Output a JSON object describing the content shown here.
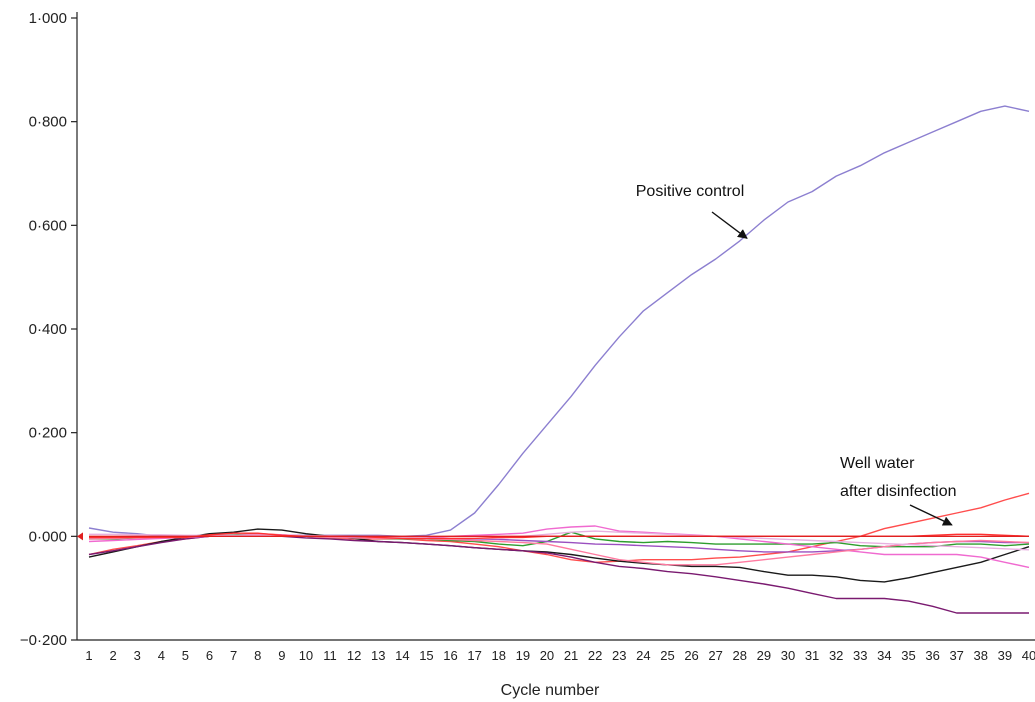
{
  "chart_data": {
    "type": "line",
    "title": "",
    "xlabel": "Cycle number",
    "ylabel": "",
    "xlim": [
      1,
      40
    ],
    "ylim": [
      -0.2,
      1.0
    ],
    "yticks": [
      -0.2,
      0.0,
      0.2,
      0.4,
      0.6,
      0.8,
      1.0
    ],
    "ytick_labels": [
      "−0·200",
      "0·000",
      "0·200",
      "0·400",
      "0·600",
      "0·800",
      "1·000"
    ],
    "x": [
      1,
      2,
      3,
      4,
      5,
      6,
      7,
      8,
      9,
      10,
      11,
      12,
      13,
      14,
      15,
      16,
      17,
      18,
      19,
      20,
      21,
      22,
      23,
      24,
      25,
      26,
      27,
      28,
      29,
      30,
      31,
      32,
      33,
      34,
      35,
      36,
      37,
      38,
      39,
      40
    ],
    "series": [
      {
        "color": "#8c7fd0",
        "values": [
          0.016,
          0.008,
          0.005,
          0.0,
          -0.002,
          0.0,
          0.002,
          0.002,
          0.002,
          0.002,
          0.002,
          0.002,
          0.002,
          0.0,
          0.002,
          0.012,
          0.045,
          0.1,
          0.16,
          0.215,
          0.27,
          0.33,
          0.385,
          0.435,
          0.47,
          0.505,
          0.535,
          0.57,
          0.61,
          0.645,
          0.665,
          0.695,
          0.715,
          0.74,
          0.76,
          0.78,
          0.8,
          0.82,
          0.83,
          0.82
        ]
      },
      {
        "color": "#ff4d4d",
        "values": [
          -0.035,
          -0.025,
          -0.018,
          -0.01,
          -0.005,
          0.0,
          0.002,
          0.005,
          0.003,
          0.0,
          -0.003,
          -0.005,
          -0.005,
          -0.005,
          -0.008,
          -0.01,
          -0.015,
          -0.02,
          -0.028,
          -0.035,
          -0.045,
          -0.05,
          -0.048,
          -0.045,
          -0.045,
          -0.045,
          -0.042,
          -0.04,
          -0.035,
          -0.03,
          -0.02,
          -0.01,
          0.0,
          0.015,
          0.025,
          0.035,
          0.045,
          0.055,
          0.07,
          0.083
        ]
      },
      {
        "color": "#1a1a1a",
        "values": [
          -0.04,
          -0.03,
          -0.02,
          -0.01,
          -0.002,
          0.005,
          0.008,
          0.014,
          0.012,
          0.005,
          0.0,
          -0.004,
          -0.01,
          -0.012,
          -0.015,
          -0.018,
          -0.022,
          -0.025,
          -0.028,
          -0.03,
          -0.035,
          -0.042,
          -0.048,
          -0.052,
          -0.055,
          -0.058,
          -0.058,
          -0.06,
          -0.068,
          -0.075,
          -0.075,
          -0.078,
          -0.085,
          -0.088,
          -0.08,
          -0.07,
          -0.06,
          -0.05,
          -0.035,
          -0.02
        ]
      },
      {
        "color": "#7a1a70",
        "values": [
          -0.035,
          -0.028,
          -0.02,
          -0.012,
          -0.005,
          0.0,
          0.002,
          0.003,
          0.0,
          -0.003,
          -0.005,
          -0.008,
          -0.01,
          -0.012,
          -0.015,
          -0.018,
          -0.022,
          -0.025,
          -0.028,
          -0.032,
          -0.04,
          -0.05,
          -0.058,
          -0.062,
          -0.068,
          -0.072,
          -0.078,
          -0.085,
          -0.092,
          -0.1,
          -0.11,
          -0.12,
          -0.12,
          -0.12,
          -0.125,
          -0.135,
          -0.148,
          -0.148,
          -0.148,
          -0.148
        ]
      },
      {
        "color": "#2e9e2e",
        "values": [
          -0.005,
          -0.005,
          -0.003,
          -0.002,
          0.0,
          0.002,
          0.003,
          0.004,
          0.002,
          0.0,
          -0.002,
          -0.003,
          -0.004,
          -0.005,
          -0.005,
          -0.008,
          -0.01,
          -0.015,
          -0.018,
          -0.01,
          0.008,
          -0.005,
          -0.01,
          -0.012,
          -0.01,
          -0.012,
          -0.015,
          -0.015,
          -0.015,
          -0.015,
          -0.015,
          -0.012,
          -0.018,
          -0.02,
          -0.02,
          -0.02,
          -0.015,
          -0.015,
          -0.018,
          -0.015
        ]
      },
      {
        "color": "#f06ad0",
        "values": [
          -0.01,
          -0.008,
          -0.006,
          -0.004,
          -0.002,
          0.0,
          0.002,
          0.004,
          0.003,
          0.001,
          0.0,
          -0.002,
          -0.003,
          -0.003,
          -0.003,
          0.0,
          0.002,
          0.004,
          0.006,
          0.014,
          0.018,
          0.02,
          0.01,
          0.008,
          0.005,
          0.003,
          0.0,
          -0.005,
          -0.01,
          -0.015,
          -0.02,
          -0.025,
          -0.03,
          -0.035,
          -0.035,
          -0.035,
          -0.035,
          -0.04,
          -0.05,
          -0.06
        ]
      },
      {
        "color": "#9a4fc0",
        "values": [
          -0.002,
          -0.002,
          -0.001,
          0.0,
          0.0,
          0.001,
          0.002,
          0.002,
          0.001,
          0.0,
          -0.001,
          -0.002,
          -0.002,
          -0.003,
          -0.004,
          -0.005,
          -0.005,
          -0.006,
          -0.008,
          -0.01,
          -0.012,
          -0.015,
          -0.016,
          -0.018,
          -0.02,
          -0.022,
          -0.025,
          -0.028,
          -0.03,
          -0.03,
          -0.03,
          -0.028,
          -0.025,
          -0.02,
          -0.015,
          -0.012,
          -0.01,
          -0.01,
          -0.012,
          -0.012
        ]
      },
      {
        "color": "#ff7aa0",
        "values": [
          -0.005,
          -0.004,
          -0.003,
          -0.002,
          -0.001,
          0.001,
          0.002,
          0.003,
          0.002,
          0.0,
          -0.002,
          -0.003,
          -0.004,
          -0.004,
          -0.005,
          -0.006,
          -0.008,
          -0.01,
          -0.012,
          -0.015,
          -0.025,
          -0.035,
          -0.045,
          -0.05,
          -0.055,
          -0.055,
          -0.055,
          -0.05,
          -0.045,
          -0.04,
          -0.035,
          -0.03,
          -0.025,
          -0.02,
          -0.015,
          -0.012,
          -0.01,
          -0.008,
          -0.01,
          -0.012
        ]
      },
      {
        "color": "#e8b0e0",
        "values": [
          0.004,
          0.004,
          0.003,
          0.003,
          0.002,
          0.002,
          0.002,
          0.002,
          0.002,
          0.001,
          0.001,
          0.0,
          0.0,
          -0.002,
          -0.004,
          -0.004,
          -0.004,
          -0.004,
          0.0,
          0.004,
          0.008,
          0.01,
          0.008,
          0.006,
          0.004,
          0.002,
          0.0,
          -0.002,
          -0.004,
          -0.006,
          -0.008,
          -0.01,
          -0.012,
          -0.014,
          -0.016,
          -0.018,
          -0.02,
          -0.022,
          -0.024,
          -0.026
        ]
      },
      {
        "color": "#ff3030",
        "values": [
          -0.002,
          -0.002,
          -0.002,
          -0.002,
          -0.002,
          0.003,
          0.006,
          0.006,
          0.002,
          0.0,
          0.0,
          0.0,
          -0.002,
          -0.004,
          -0.004,
          -0.004,
          -0.004,
          -0.002,
          -0.002,
          0.0,
          0.0,
          0.0,
          0.0,
          0.0,
          0.0,
          0.0,
          0.0,
          0.0,
          0.0,
          0.0,
          0.0,
          0.0,
          0.0,
          0.0,
          0.0,
          0.002,
          0.004,
          0.004,
          0.002,
          0.0
        ]
      },
      {
        "color": "#e02020",
        "values": [
          0.0,
          0.0,
          0.0,
          0.0,
          0.0,
          0.0,
          0.0,
          0.0,
          0.0,
          0.0,
          0.0,
          0.0,
          0.0,
          0.0,
          0.0,
          0.0,
          0.0,
          0.0,
          0.0,
          0.0,
          0.0,
          0.0,
          0.0,
          0.0,
          0.0,
          0.0,
          0.0,
          0.0,
          0.0,
          0.0,
          0.0,
          0.0,
          0.0,
          0.0,
          0.0,
          0.0,
          0.0,
          0.0,
          0.0,
          0.0
        ]
      }
    ],
    "annotations": [
      {
        "lines": [
          "Positive control"
        ],
        "target": {
          "x": 28.3,
          "y": 0.575
        }
      },
      {
        "lines": [
          "Well water",
          "after disinfection"
        ],
        "target": {
          "x": 36.8,
          "y": 0.022
        }
      }
    ],
    "grid": false,
    "legend": "none"
  }
}
